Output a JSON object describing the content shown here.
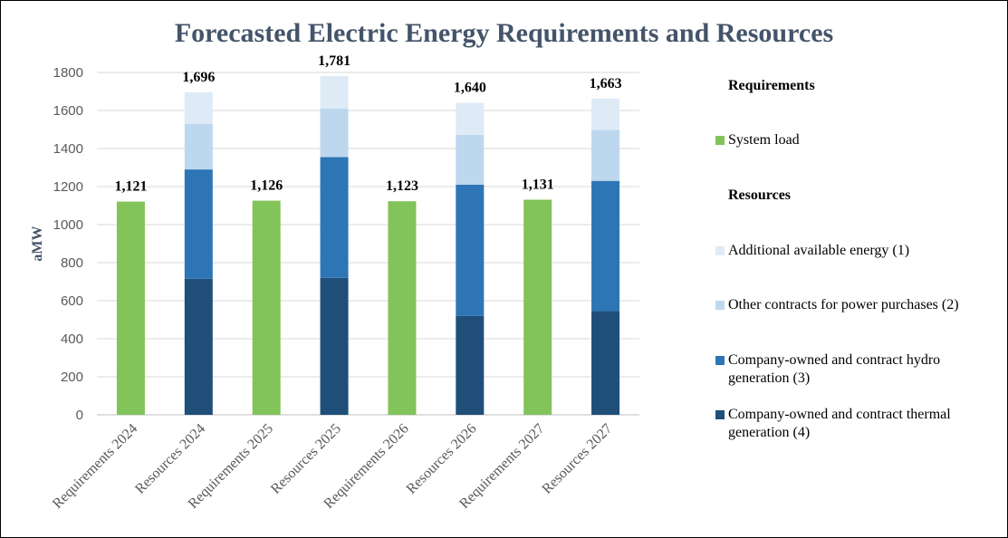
{
  "chart_data": {
    "type": "bar",
    "stacked": true,
    "title": "Forecasted Electric Energy Requirements and Resources",
    "xlabel": "",
    "ylabel": "aMW",
    "ylim": [
      0,
      1800
    ],
    "yticks": [
      0,
      200,
      400,
      600,
      800,
      1000,
      1200,
      1400,
      1600,
      1800
    ],
    "grid": true,
    "legend_position": "right",
    "categories": [
      "Requirements 2024",
      "Resources 2024",
      "Requirements 2025",
      "Resources 2025",
      "Requirements 2026",
      "Resources 2026",
      "Requirements 2027",
      "Resources 2027"
    ],
    "series": [
      {
        "name": "System load",
        "color": "#82c35a",
        "values": [
          1121,
          0,
          1126,
          0,
          1123,
          0,
          1131,
          0
        ]
      },
      {
        "name": "Company-owned and contract thermal generation (4)",
        "color": "#1f4e79",
        "values": [
          0,
          715,
          0,
          720,
          0,
          520,
          0,
          545
        ]
      },
      {
        "name": "Company-owned and contract hydro generation (3)",
        "color": "#2e75b6",
        "values": [
          0,
          575,
          0,
          635,
          0,
          690,
          0,
          685
        ]
      },
      {
        "name": "Other contracts for power purchases (2)",
        "color": "#bdd7ee",
        "values": [
          0,
          240,
          0,
          255,
          0,
          262,
          0,
          268
        ]
      },
      {
        "name": "Additional available energy (1)",
        "color": "#deebf7",
        "values": [
          0,
          166,
          0,
          171,
          0,
          168,
          0,
          165
        ]
      }
    ],
    "data_labels": [
      "1,121",
      "1,696",
      "1,126",
      "1,781",
      "1,123",
      "1,640",
      "1,131",
      "1,663"
    ]
  },
  "legend": {
    "requirements_heading": "Requirements",
    "resources_heading": "Resources",
    "items": [
      {
        "label": "System load",
        "color": "#82c35a"
      },
      {
        "label": "Additional available energy (1)",
        "color": "#deebf7"
      },
      {
        "label": "Other contracts for power purchases (2)",
        "color": "#bdd7ee"
      },
      {
        "label": "Company-owned and contract hydro generation (3)",
        "color": "#2e75b6"
      },
      {
        "label": "Company-owned and contract thermal generation (4)",
        "color": "#1f4e79"
      }
    ]
  }
}
